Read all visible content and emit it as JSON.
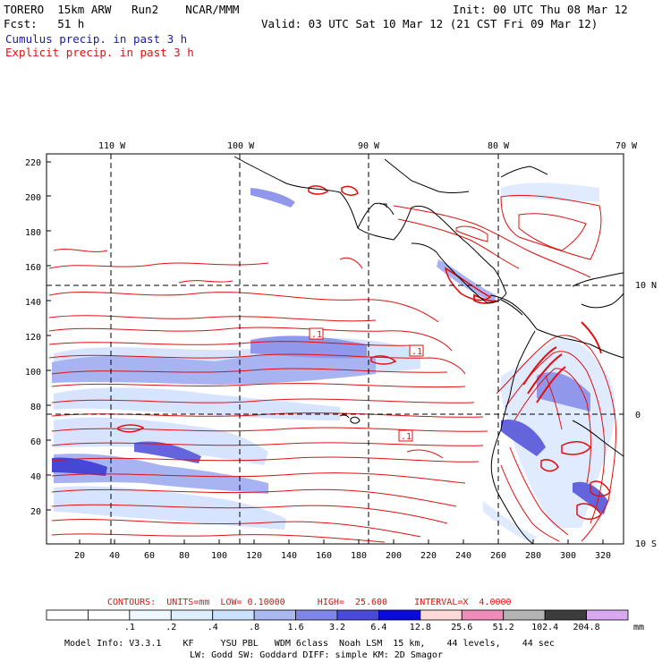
{
  "header": {
    "model": "TORERO  15km ARW   Run2    NCAR/MMM",
    "init": "Init: 00 UTC Thu 08 Mar 12",
    "fcst_label": "Fcst:   51 h",
    "valid": "Valid: 03 UTC Sat 10 Mar 12 (21 CST Fri 09 Mar 12)",
    "cumulus": "Cumulus precip. in past 3 h",
    "explicit": "Explicit precip. in past 3 h"
  },
  "map": {
    "lon_labels": [
      "110 W",
      "100 W",
      "90 W",
      "80 W",
      "70 W"
    ],
    "lat_labels_right": [
      "10 N",
      "0",
      "10 S"
    ],
    "y_ticks": [
      "220",
      "200",
      "180",
      "160",
      "140",
      "120",
      "100",
      "80",
      "60",
      "40",
      "20"
    ],
    "x_ticks": [
      "20",
      "40",
      "60",
      "80",
      "100",
      "120",
      "140",
      "160",
      "180",
      "200",
      "220",
      "240",
      "260",
      "280",
      "300",
      "320"
    ],
    "contour_labels": [
      ".1",
      ".1",
      ".1"
    ],
    "colors": {
      "cumulus": "#4a4ad8",
      "explicit": "#e01010",
      "coast": "#000000"
    }
  },
  "contours": {
    "title": "CONTOURS:  UNITS=mm  LOW= 0.10000      HIGH=  25.600     INTERVAL=X  4.0000"
  },
  "legend": {
    "unit": "mm",
    "colors": [
      "#ffffff",
      "#ffffff",
      "#f0f8ff",
      "#ddeeff",
      "#cce0ff",
      "#aab8f0",
      "#7e86e8",
      "#4a4ad8",
      "#0a0ae0",
      "#ffd8d8",
      "#f08cb8",
      "#b4b4b4",
      "#3c3c3c",
      "#d8a8f0"
    ],
    "labels": [
      ".1",
      ".2",
      ".4",
      ".8",
      "1.6",
      "3.2",
      "6.4",
      "12.8",
      "25.6",
      "51.2",
      "102.4",
      "204.8"
    ]
  },
  "model_info": {
    "line1": "Model Info: V3.3.1    KF     YSU PBL   WDM 6class  Noah LSM  15 km,    44 levels,    44 sec",
    "line2": "LW: Godd SW: Goddard DIFF: simple KM: 2D Smagor"
  }
}
